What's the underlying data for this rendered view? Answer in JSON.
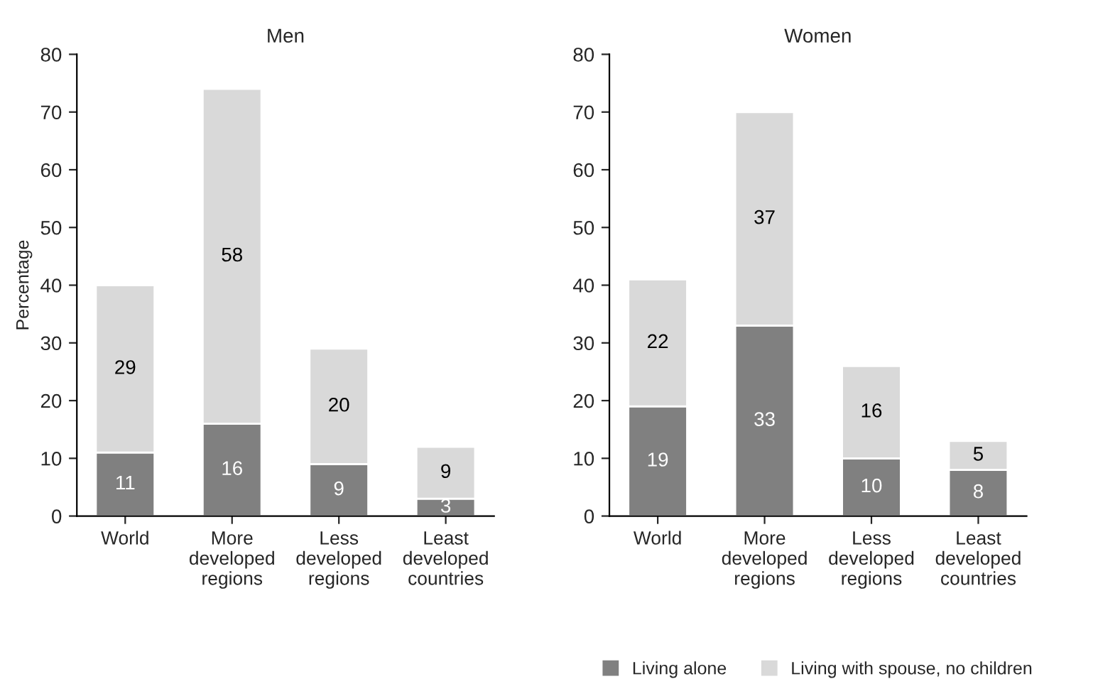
{
  "chart_data": [
    {
      "type": "bar",
      "title": "Men",
      "ylabel": "Percentage",
      "stacked": true,
      "data_labels": true,
      "categories": [
        "World",
        "More\ndeveloped\nregions",
        "Less\ndeveloped\nregions",
        "Least\ndeveloped\ncountries"
      ],
      "series": [
        {
          "color": "#808080",
          "values": [
            11,
            16,
            9,
            3
          ]
        },
        {
          "color": "#d9d9d9",
          "values": [
            29,
            58,
            20,
            9
          ]
        }
      ],
      "ylim": [
        0,
        80
      ],
      "yticks": [
        0,
        10,
        20,
        30,
        40,
        50,
        60,
        70,
        80
      ],
      "grid": false,
      "legend": false
    },
    {
      "type": "bar",
      "title": "Women",
      "stacked": true,
      "data_labels": true,
      "categories": [
        "World",
        "More\ndeveloped\nregions",
        "Less\ndeveloped\nregions",
        "Least\ndeveloped\ncountries"
      ],
      "series": [
        {
          "name": "Living alone",
          "color": "#808080",
          "values": [
            19,
            33,
            10,
            8
          ]
        },
        {
          "name": "Living with spouse, no children",
          "color": "#d9d9d9",
          "values": [
            22,
            37,
            16,
            5
          ]
        }
      ],
      "ylim": [
        0,
        80
      ],
      "yticks": [
        0,
        10,
        20,
        30,
        40,
        50,
        60,
        70,
        80
      ],
      "grid": false,
      "legend": "bottom"
    }
  ]
}
